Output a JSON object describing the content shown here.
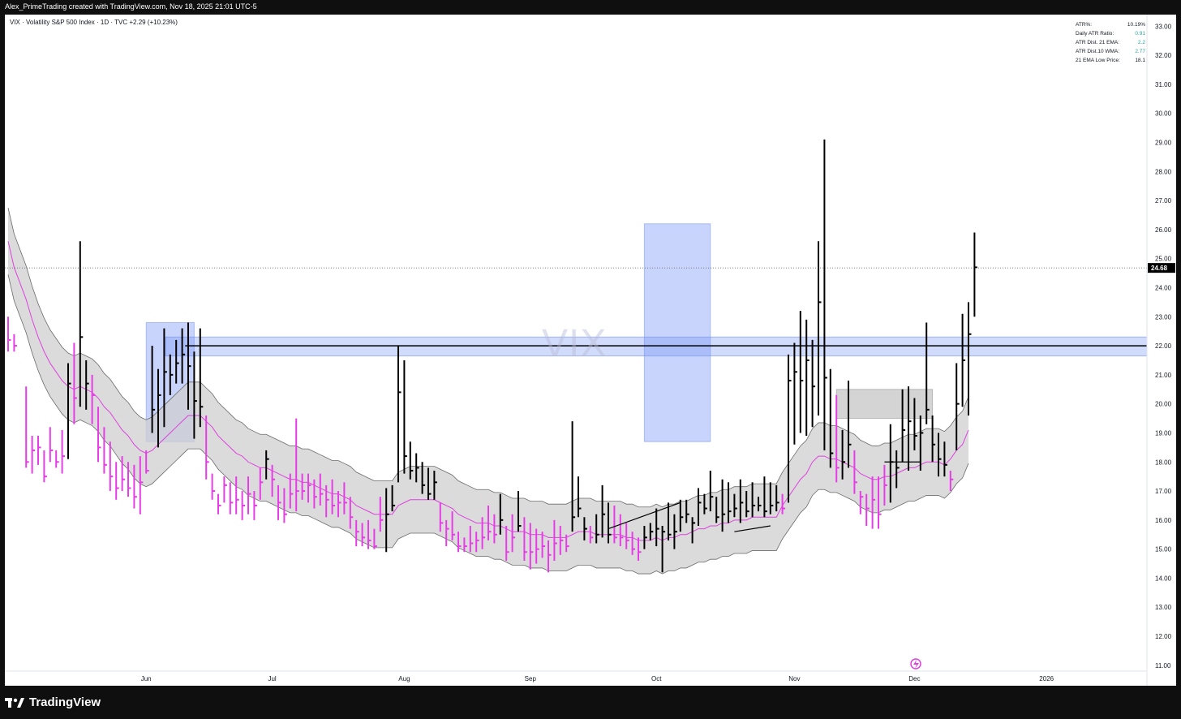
{
  "header": {
    "credit": "Alex_PrimeTrading created with TradingView.com, Nov 18, 2025 21:01 UTC-5"
  },
  "legend": {
    "symbol_line": "VIX · Volatility S&P 500 Index · 1D · TVC",
    "change": "+2.29 (+10.23%)"
  },
  "watermark": "VIX",
  "atr_table": [
    {
      "label": "ATR%:",
      "value": "10.19%",
      "color": "#131722"
    },
    {
      "label": "Daily ATR Ratio:",
      "value": "0.91",
      "color": "#26a69a"
    },
    {
      "label": "ATR Dist. 21 EMA:",
      "value": "2.2",
      "color": "#26a69a"
    },
    {
      "label": "ATR Dist.10 WMA:",
      "value": "2.77",
      "color": "#26a69a"
    },
    {
      "label": "21 EMA Low Price:",
      "value": "18.1",
      "color": "#131722"
    }
  ],
  "footer": {
    "brand": "TradingView",
    "brand_icon": "tradingview-logo-icon"
  },
  "colors": {
    "down_bar": "#e63de6",
    "up_bar": "#000000",
    "ema": "#e040e0",
    "band_fill": "#cfcfcf",
    "band_line": "#6b6b6b",
    "zone": "#6f8ef5",
    "gray_zone": "#b0b0b0",
    "price_tag": "#000000"
  },
  "chart_data": {
    "type": "ohlc",
    "ylim": [
      10.8,
      33.4
    ],
    "y_ticks": [
      "11.00",
      "12.00",
      "13.00",
      "14.00",
      "15.00",
      "16.00",
      "17.00",
      "18.00",
      "19.00",
      "20.00",
      "21.00",
      "22.00",
      "23.00",
      "24.00",
      "25.00",
      "26.00",
      "27.00",
      "28.00",
      "29.00",
      "30.00",
      "31.00",
      "32.00",
      "33.00"
    ],
    "x_ticks": [
      {
        "label": "Jun",
        "i": 23
      },
      {
        "label": "Jul",
        "i": 44
      },
      {
        "label": "Aug",
        "i": 66
      },
      {
        "label": "Sep",
        "i": 87
      },
      {
        "label": "Oct",
        "i": 108
      },
      {
        "label": "Nov",
        "i": 131
      },
      {
        "label": "Dec",
        "i": 151
      },
      {
        "label": "2026",
        "i": 173
      }
    ],
    "last_price": "24.68",
    "last_value": 24.68,
    "bars": [
      [
        23.0,
        21.8,
        22.2
      ],
      [
        22.4,
        21.8,
        22.0
      ],
      [
        null,
        null,
        null
      ],
      [
        20.6,
        17.8,
        18.0
      ],
      [
        18.9,
        17.6,
        18.4
      ],
      [
        18.9,
        17.9,
        18.5
      ],
      [
        18.4,
        17.3,
        17.5
      ],
      [
        19.2,
        18.0,
        18.4
      ],
      [
        18.4,
        17.8,
        18.0
      ],
      [
        19.1,
        17.6,
        18.2
      ],
      [
        21.4,
        18.1,
        20.7
      ],
      [
        22.1,
        19.3,
        20.2
      ],
      [
        25.6,
        19.9,
        22.3
      ],
      [
        21.5,
        19.8,
        20.7
      ],
      [
        21.0,
        19.3,
        20.3
      ],
      [
        19.9,
        18.0,
        18.5
      ],
      [
        19.2,
        17.6,
        17.9
      ],
      [
        18.7,
        17.0,
        17.5
      ],
      [
        18.0,
        16.7,
        17.1
      ],
      [
        18.2,
        17.0,
        17.4
      ],
      [
        18.0,
        16.8,
        17.1
      ],
      [
        17.9,
        16.4,
        16.8
      ],
      [
        18.2,
        16.2,
        17.3
      ],
      [
        18.4,
        17.6,
        17.7
      ],
      [
        22.0,
        19.0,
        19.8
      ],
      [
        21.2,
        18.5,
        20.3
      ],
      [
        22.6,
        19.2,
        21.1
      ],
      [
        21.7,
        20.3,
        21.0
      ],
      [
        22.2,
        20.7,
        21.4
      ],
      [
        22.6,
        20.7,
        21.7
      ],
      [
        22.8,
        19.8,
        21.3
      ],
      [
        21.8,
        18.8,
        20.1
      ],
      [
        22.6,
        19.2,
        19.9
      ],
      [
        19.6,
        17.4,
        18.0
      ],
      [
        17.6,
        16.7,
        17.0
      ],
      [
        16.9,
        16.2,
        16.5
      ],
      [
        17.5,
        16.6,
        17.2
      ],
      [
        17.3,
        16.2,
        16.6
      ],
      [
        17.5,
        16.2,
        16.7
      ],
      [
        17.0,
        16.0,
        16.5
      ],
      [
        17.5,
        16.2,
        16.9
      ],
      [
        17.0,
        16.0,
        16.5
      ],
      [
        17.8,
        16.7,
        17.3
      ],
      [
        18.4,
        17.4,
        18.1
      ],
      [
        17.9,
        16.8,
        17.4
      ],
      [
        17.2,
        16.0,
        16.6
      ],
      [
        17.1,
        15.9,
        16.2
      ],
      [
        17.6,
        16.4,
        16.9
      ],
      [
        19.5,
        16.3,
        17.0
      ],
      [
        17.6,
        16.7,
        17.0
      ],
      [
        17.6,
        16.6,
        17.2
      ],
      [
        17.4,
        16.4,
        16.8
      ],
      [
        17.6,
        16.5,
        16.9
      ],
      [
        17.2,
        16.1,
        16.7
      ],
      [
        17.4,
        16.2,
        16.5
      ],
      [
        17.0,
        16.1,
        16.6
      ],
      [
        17.3,
        16.2,
        16.6
      ],
      [
        16.8,
        15.7,
        16.1
      ],
      [
        16.0,
        15.1,
        15.6
      ],
      [
        15.9,
        15.1,
        15.4
      ],
      [
        16.0,
        15.0,
        15.3
      ],
      [
        15.7,
        15.0,
        15.1
      ],
      [
        16.8,
        15.6,
        16.0
      ],
      [
        17.1,
        14.9,
        16.2
      ],
      [
        17.2,
        16.3,
        16.5
      ],
      [
        22.0,
        17.3,
        20.4
      ],
      [
        21.5,
        17.6,
        18.2
      ],
      [
        18.7,
        17.4,
        17.7
      ],
      [
        18.3,
        17.3,
        17.8
      ],
      [
        18.0,
        16.9,
        17.2
      ],
      [
        17.8,
        16.7,
        16.9
      ],
      [
        17.7,
        16.7,
        17.3
      ],
      [
        16.6,
        15.6,
        15.9
      ],
      [
        16.0,
        15.1,
        15.7
      ],
      [
        16.3,
        15.3,
        15.5
      ],
      [
        15.6,
        14.9,
        15.1
      ],
      [
        15.4,
        14.9,
        15.1
      ],
      [
        15.8,
        14.9,
        15.2
      ],
      [
        15.6,
        14.9,
        15.3
      ],
      [
        16.1,
        15.0,
        15.4
      ],
      [
        16.5,
        15.3,
        15.6
      ],
      [
        16.2,
        15.2,
        15.5
      ],
      [
        16.9,
        15.5,
        16.0
      ],
      [
        15.8,
        14.6,
        14.9
      ],
      [
        16.2,
        14.9,
        15.4
      ],
      [
        17.0,
        15.6,
        15.8
      ],
      [
        16.1,
        14.6,
        14.9
      ],
      [
        15.9,
        14.3,
        14.9
      ],
      [
        15.7,
        14.5,
        15.0
      ],
      [
        15.6,
        14.7,
        15.1
      ],
      [
        15.3,
        14.2,
        14.8
      ],
      [
        16.0,
        14.6,
        15.2
      ],
      [
        15.8,
        14.8,
        15.3
      ],
      [
        15.5,
        14.9,
        15.1
      ],
      [
        19.4,
        15.6,
        16.1
      ],
      [
        17.5,
        16.1,
        16.4
      ],
      [
        16.1,
        15.3,
        15.7
      ],
      [
        15.8,
        15.2,
        15.4
      ],
      [
        16.2,
        15.2,
        15.5
      ],
      [
        17.2,
        15.4,
        16.2
      ],
      [
        16.6,
        15.2,
        15.5
      ],
      [
        16.5,
        15.2,
        15.4
      ],
      [
        16.2,
        15.1,
        15.4
      ],
      [
        15.9,
        15.0,
        15.3
      ],
      [
        15.6,
        14.8,
        15.0
      ],
      [
        15.4,
        14.6,
        14.9
      ],
      [
        15.8,
        15.0,
        15.4
      ],
      [
        15.9,
        15.3,
        15.6
      ],
      [
        16.4,
        15.1,
        15.7
      ],
      [
        15.8,
        14.2,
        15.6
      ],
      [
        16.6,
        15.3,
        15.5
      ],
      [
        16.2,
        15.0,
        15.6
      ],
      [
        16.7,
        15.6,
        16.1
      ],
      [
        16.7,
        15.9,
        16.2
      ],
      [
        16.1,
        15.2,
        15.9
      ],
      [
        17.1,
        15.8,
        16.6
      ],
      [
        16.9,
        16.2,
        16.4
      ],
      [
        17.7,
        16.3,
        16.8
      ],
      [
        16.8,
        15.9,
        16.1
      ],
      [
        17.4,
        15.6,
        16.2
      ],
      [
        17.3,
        15.9,
        16.3
      ],
      [
        16.9,
        16.1,
        16.4
      ],
      [
        17.4,
        15.9,
        16.6
      ],
      [
        17.0,
        16.1,
        16.3
      ],
      [
        17.3,
        16.1,
        16.5
      ],
      [
        16.8,
        16.3,
        16.5
      ],
      [
        17.5,
        16.1,
        16.3
      ],
      [
        17.3,
        16.2,
        16.5
      ],
      [
        17.2,
        16.3,
        16.6
      ],
      [
        16.9,
        16.2,
        16.4
      ],
      [
        21.7,
        16.6,
        20.8
      ],
      [
        22.1,
        18.6,
        21.1
      ],
      [
        23.2,
        19.0,
        20.8
      ],
      [
        22.9,
        18.9,
        21.5
      ],
      [
        22.2,
        19.2,
        20.6
      ],
      [
        25.6,
        19.6,
        23.5
      ],
      [
        29.1,
        18.4,
        20.9
      ],
      [
        21.2,
        17.8,
        18.3
      ],
      [
        20.3,
        17.3,
        17.8
      ],
      [
        19.1,
        17.4,
        18.0
      ],
      [
        20.8,
        17.8,
        18.6
      ],
      [
        18.4,
        16.9,
        17.3
      ],
      [
        17.0,
        16.2,
        16.8
      ],
      [
        16.9,
        15.8,
        16.4
      ],
      [
        17.5,
        15.7,
        16.7
      ],
      [
        17.5,
        15.7,
        16.2
      ],
      [
        17.9,
        16.5,
        17.2
      ],
      [
        19.3,
        16.6,
        18.0
      ],
      [
        18.4,
        17.1,
        17.8
      ],
      [
        20.5,
        18.0,
        19.1
      ],
      [
        20.6,
        17.7,
        19.4
      ],
      [
        20.2,
        18.4,
        18.9
      ],
      [
        19.6,
        17.7,
        19.0
      ],
      [
        22.8,
        19.3,
        19.8
      ],
      [
        19.6,
        18.0,
        18.6
      ],
      [
        19.0,
        17.5,
        18.1
      ],
      [
        18.7,
        17.5,
        17.9
      ],
      [
        17.7,
        17.0,
        17.4
      ],
      [
        21.4,
        18.4,
        20.0
      ],
      [
        23.1,
        19.9,
        21.5
      ],
      [
        23.5,
        19.6,
        22.4
      ],
      [
        25.9,
        23.0,
        24.7
      ]
    ],
    "ema21": [
      25.6,
      24.7,
      null,
      23.6,
      22.9,
      22.3,
      21.8,
      21.4,
      21.1,
      20.8,
      20.6,
      20.5,
      20.6,
      20.5,
      20.4,
      20.2,
      19.9,
      19.7,
      19.4,
      19.1,
      18.9,
      18.6,
      18.4,
      18.3,
      18.4,
      18.6,
      18.8,
      19.0,
      19.2,
      19.4,
      19.6,
      19.6,
      19.6,
      19.4,
      19.2,
      18.9,
      18.7,
      18.5,
      18.3,
      18.2,
      18.0,
      17.9,
      17.8,
      17.8,
      17.7,
      17.6,
      17.5,
      17.4,
      17.4,
      17.3,
      17.3,
      17.2,
      17.1,
      17.0,
      16.9,
      16.9,
      16.8,
      16.7,
      16.5,
      16.4,
      16.3,
      16.2,
      16.2,
      16.2,
      16.2,
      16.5,
      16.6,
      16.7,
      16.7,
      16.7,
      16.7,
      16.7,
      16.6,
      16.5,
      16.4,
      16.2,
      16.1,
      16.0,
      15.9,
      15.9,
      15.9,
      15.8,
      15.8,
      15.7,
      15.6,
      15.6,
      15.6,
      15.5,
      15.5,
      15.5,
      15.4,
      15.4,
      15.4,
      15.4,
      15.5,
      15.6,
      15.6,
      15.6,
      15.5,
      15.5,
      15.5,
      15.5,
      15.5,
      15.4,
      15.4,
      15.3,
      15.3,
      15.3,
      15.4,
      15.3,
      15.4,
      15.4,
      15.5,
      15.5,
      15.6,
      15.7,
      15.7,
      15.8,
      15.8,
      15.9,
      15.9,
      16.0,
      16.0,
      16.0,
      16.1,
      16.1,
      16.1,
      16.1,
      16.1,
      16.5,
      16.8,
      17.1,
      17.4,
      17.6,
      18.0,
      18.2,
      18.2,
      18.1,
      18.1,
      18.0,
      17.9,
      17.8,
      17.6,
      17.5,
      17.4,
      17.4,
      17.5,
      17.5,
      17.6,
      17.7,
      17.8,
      17.8,
      17.9,
      18.0,
      18.0,
      18.0,
      17.9,
      18.1,
      18.4,
      18.6,
      19.1
    ],
    "band_half": 1.15,
    "annotations": {
      "horizontal_line": 22.0,
      "blue_zone_horizontal": {
        "y1": 21.65,
        "y2": 22.3,
        "i1": -1
      },
      "blue_box_1": {
        "i1": 23,
        "i2": 31,
        "y1": 18.7,
        "y2": 22.8
      },
      "blue_box_2": {
        "i1": 106,
        "i2": 117,
        "y1": 18.7,
        "y2": 26.2
      },
      "gray_box": {
        "i1": 138,
        "i2": 154,
        "y1": 19.5,
        "y2": 20.5
      },
      "short_line_18": {
        "i1": 146,
        "i2": 152,
        "y": 18.0
      },
      "trend_1": {
        "i1": 100,
        "y1": 15.7,
        "i2": 112,
        "y2": 16.6
      },
      "trend_2": {
        "i1": 121,
        "y1": 15.6,
        "i2": 127,
        "y2": 15.8
      }
    }
  }
}
